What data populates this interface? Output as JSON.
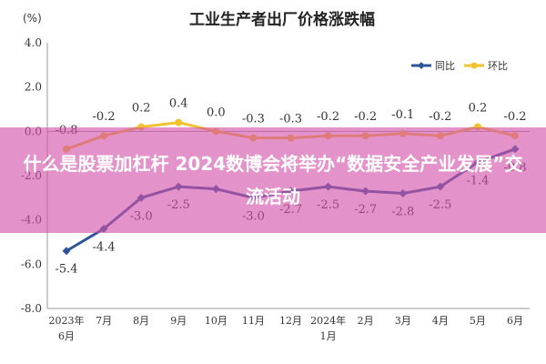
{
  "chart_data": {
    "type": "line",
    "title": "工业生产者出厂价格涨跌幅",
    "unit_label": "(%)",
    "categories": [
      "2023年\n6月",
      "7月",
      "8月",
      "9月",
      "10月",
      "11月",
      "12月",
      "2024年\n1月",
      "2月",
      "3月",
      "4月",
      "5月",
      "6月"
    ],
    "series": [
      {
        "name": "同比",
        "color": "#2e5597",
        "values": [
          -5.4,
          -4.4,
          -3.0,
          -2.5,
          -2.6,
          -3.0,
          -2.7,
          -2.5,
          -2.7,
          -2.8,
          -2.5,
          -1.4,
          -0.8
        ],
        "labels": [
          "-5.4",
          "-4.4",
          "-3.0",
          "-2.5",
          "",
          "-3.0",
          "-2.7",
          "-2.5",
          "-2.7",
          "-2.8",
          "-2.5",
          "-1.4",
          "-0.8"
        ]
      },
      {
        "name": "环比",
        "color": "#f2c12e",
        "values": [
          -0.8,
          -0.2,
          0.2,
          0.4,
          0.0,
          -0.3,
          -0.3,
          -0.2,
          -0.2,
          -0.1,
          -0.2,
          0.2,
          -0.2
        ],
        "labels": [
          "-0.8",
          "-0.2",
          "0.2",
          "0.4",
          "0.0",
          "-0.3",
          "-0.3",
          "-0.2",
          "-0.2",
          "-0.1",
          "-0.2",
          "0.2",
          "-0.2"
        ]
      }
    ],
    "ylim": [
      -8.0,
      4.0
    ],
    "yticks": [
      "4.0",
      "2.0",
      "0.0",
      "-2.0",
      "-4.0",
      "-6.0",
      "-8.0"
    ],
    "legend_position": "top-right",
    "grid": false
  },
  "overlay": {
    "headline": "什么是股票加杠杆 2024数博会将举办“数据安全产业发展”交流活动"
  }
}
